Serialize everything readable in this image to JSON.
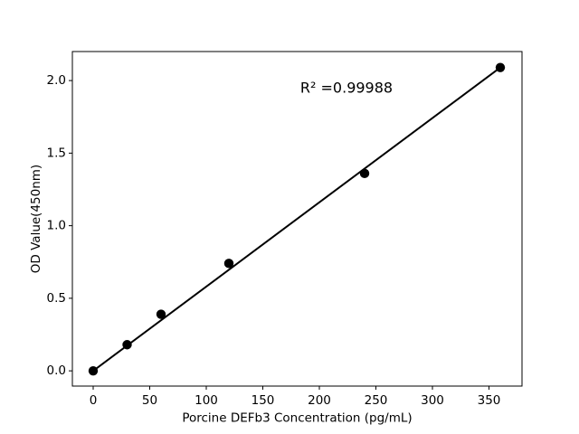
{
  "figure": {
    "background": "#ffffff"
  },
  "chart_data": {
    "type": "scatter",
    "title": "",
    "xlabel": "Porcine DEFb3 Concentration (pg/mL)",
    "ylabel": "OD Value(450nm)",
    "annotation": {
      "text": "R² =0.99988",
      "x": 224,
      "y": 1.95
    },
    "points": [
      {
        "x": 0,
        "y": 0.0
      },
      {
        "x": 30,
        "y": 0.18
      },
      {
        "x": 60,
        "y": 0.39
      },
      {
        "x": 120,
        "y": 0.74
      },
      {
        "x": 240,
        "y": 1.36
      },
      {
        "x": 360,
        "y": 2.09
      }
    ],
    "fit_line": {
      "x1": 0,
      "y1": 0.0,
      "x2": 360,
      "y2": 2.09
    },
    "xticks": [
      0,
      50,
      100,
      150,
      200,
      250,
      300,
      350
    ],
    "yticks": [
      "0.0",
      "0.5",
      "1.0",
      "1.5",
      "2.0"
    ],
    "xlim": [
      -18.4,
      379.2
    ],
    "ylim": [
      -0.105,
      2.2
    ],
    "grid": false,
    "legend": null,
    "colors": {
      "marker": "#000000",
      "line": "#000000",
      "text": "#000000",
      "background": "#ffffff"
    }
  }
}
